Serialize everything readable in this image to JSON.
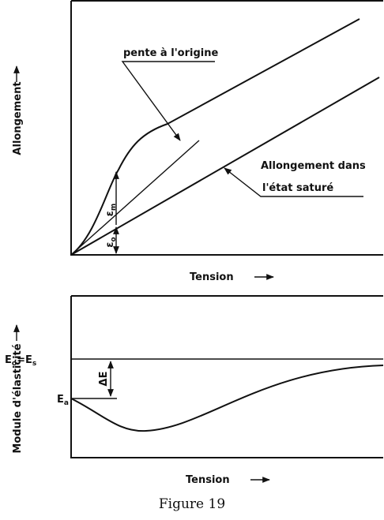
{
  "top_plot": {
    "y_label": "Allongement",
    "x_label": "Tension",
    "tangent_label": "pente à l'origine",
    "saturated_label": [
      "Allongement dans",
      "l'état saturé"
    ],
    "epsilon_m": {
      "symbol": "ε",
      "subscript": "m"
    },
    "epsilon_o": {
      "symbol": "ε",
      "subscript": "o"
    }
  },
  "bottom_plot": {
    "y_label": "Module d'élasticité",
    "x_label": "Tension",
    "eo_es": {
      "first": "E",
      "first_sub": "o",
      "equals": "=",
      "second": "E",
      "second_sub": "s"
    },
    "ea": {
      "symbol": "E",
      "subscript": "a"
    },
    "delta_e": "ΔE"
  },
  "caption": "Figure 19"
}
